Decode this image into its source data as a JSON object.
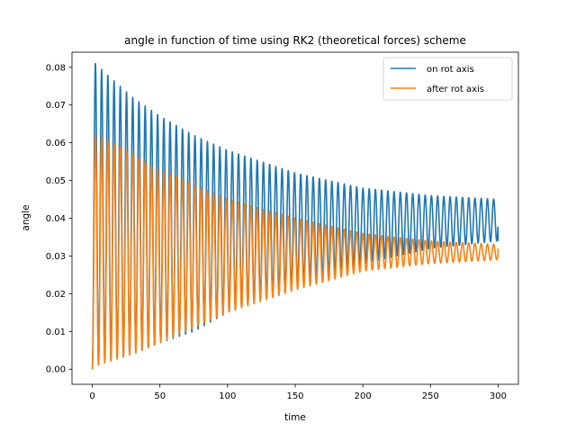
{
  "chart_data": {
    "type": "line",
    "title": "angle in function of time using RK2 (theoretical forces) scheme",
    "xlabel": "time",
    "ylabel": "angle",
    "xlim": [
      -15,
      315
    ],
    "ylim": [
      -0.004,
      0.084
    ],
    "grid": false,
    "legend_position": "top-right",
    "xticks": [
      0,
      50,
      100,
      150,
      200,
      250,
      300
    ],
    "xtick_labels": [
      "0",
      "50",
      "100",
      "150",
      "200",
      "250",
      "300"
    ],
    "yticks": [
      0.0,
      0.01,
      0.02,
      0.03,
      0.04,
      0.05,
      0.06,
      0.07,
      0.08
    ],
    "ytick_labels": [
      "0.00",
      "0.01",
      "0.02",
      "0.03",
      "0.04",
      "0.05",
      "0.06",
      "0.07",
      "0.08"
    ],
    "series": [
      {
        "name": "on rot axis",
        "color": "#1f77b4",
        "period": 4.6,
        "peaks": [
          [
            3,
            0.081
          ],
          [
            8,
            0.079
          ],
          [
            30,
            0.072
          ],
          [
            50,
            0.067
          ],
          [
            75,
            0.062
          ],
          [
            100,
            0.058
          ],
          [
            150,
            0.052
          ],
          [
            200,
            0.048
          ],
          [
            250,
            0.046
          ],
          [
            300,
            0.045
          ]
        ],
        "troughs": [
          [
            0,
            0.0
          ],
          [
            8,
            0.002
          ],
          [
            30,
            0.004
          ],
          [
            50,
            0.007
          ],
          [
            75,
            0.01
          ],
          [
            100,
            0.015
          ],
          [
            150,
            0.022
          ],
          [
            200,
            0.028
          ],
          [
            250,
            0.032
          ],
          [
            300,
            0.034
          ]
        ],
        "end_value": 0.034
      },
      {
        "name": "after rot axis",
        "color": "#ff7f0e",
        "period": 4.6,
        "peaks": [
          [
            2,
            0.062
          ],
          [
            5,
            0.062
          ],
          [
            30,
            0.057
          ],
          [
            50,
            0.053
          ],
          [
            75,
            0.049
          ],
          [
            100,
            0.045
          ],
          [
            150,
            0.04
          ],
          [
            200,
            0.036
          ],
          [
            250,
            0.034
          ],
          [
            300,
            0.033
          ]
        ],
        "troughs": [
          [
            0,
            0.0
          ],
          [
            4,
            0.001
          ],
          [
            30,
            0.004
          ],
          [
            50,
            0.007
          ],
          [
            75,
            0.011
          ],
          [
            100,
            0.015
          ],
          [
            150,
            0.021
          ],
          [
            200,
            0.026
          ],
          [
            250,
            0.028
          ],
          [
            300,
            0.029
          ]
        ],
        "end_value": 0.032
      }
    ]
  }
}
